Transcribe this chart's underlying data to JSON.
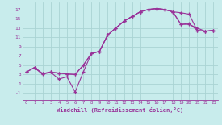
{
  "xlabel": "Windchill (Refroidissement éolien,°C)",
  "xlim": [
    -0.5,
    23.5
  ],
  "ylim": [
    -2.5,
    18.5
  ],
  "yticks": [
    -1,
    1,
    3,
    5,
    7,
    9,
    11,
    13,
    15,
    17
  ],
  "xticks": [
    0,
    1,
    2,
    3,
    4,
    5,
    6,
    7,
    8,
    9,
    10,
    11,
    12,
    13,
    14,
    15,
    16,
    17,
    18,
    19,
    20,
    21,
    22,
    23
  ],
  "bg_color": "#c8ecec",
  "line_color": "#993399",
  "grid_color": "#aad4d4",
  "curve1_x": [
    0,
    1,
    2,
    3,
    4,
    5,
    6,
    7,
    8,
    9,
    10,
    11,
    12,
    13,
    14,
    15,
    16,
    17,
    18,
    19,
    20,
    21,
    22,
    23
  ],
  "curve1_y": [
    3.5,
    4.5,
    3.2,
    3.5,
    3.3,
    3.1,
    3.0,
    5.0,
    7.5,
    8.0,
    11.5,
    13.0,
    14.5,
    15.5,
    16.5,
    17.0,
    17.2,
    17.0,
    16.5,
    16.3,
    16.0,
    12.5,
    12.3,
    12.5
  ],
  "curve2_x": [
    0,
    1,
    2,
    3,
    4,
    5,
    6,
    7,
    8,
    9,
    10,
    11,
    12,
    13,
    14,
    15,
    16,
    17,
    18,
    19,
    20,
    21,
    22,
    23
  ],
  "curve2_y": [
    3.5,
    4.5,
    3.2,
    3.5,
    3.3,
    3.1,
    3.0,
    5.0,
    7.5,
    8.0,
    11.5,
    13.0,
    14.5,
    15.5,
    16.5,
    17.0,
    17.2,
    17.0,
    16.5,
    13.8,
    14.0,
    12.5,
    12.3,
    12.5
  ],
  "curve3_x": [
    1,
    2,
    3,
    4,
    5,
    6,
    7,
    8,
    9,
    10,
    11,
    12,
    13,
    14,
    15,
    16,
    17,
    18,
    19,
    20,
    21,
    22,
    23
  ],
  "curve3_y": [
    4.5,
    3.0,
    3.5,
    2.0,
    2.5,
    -0.8,
    3.5,
    7.5,
    8.0,
    11.5,
    13.0,
    14.5,
    15.5,
    16.5,
    17.0,
    17.2,
    17.0,
    16.5,
    13.8,
    13.8,
    13.0,
    12.3,
    12.5
  ],
  "marker": "+"
}
